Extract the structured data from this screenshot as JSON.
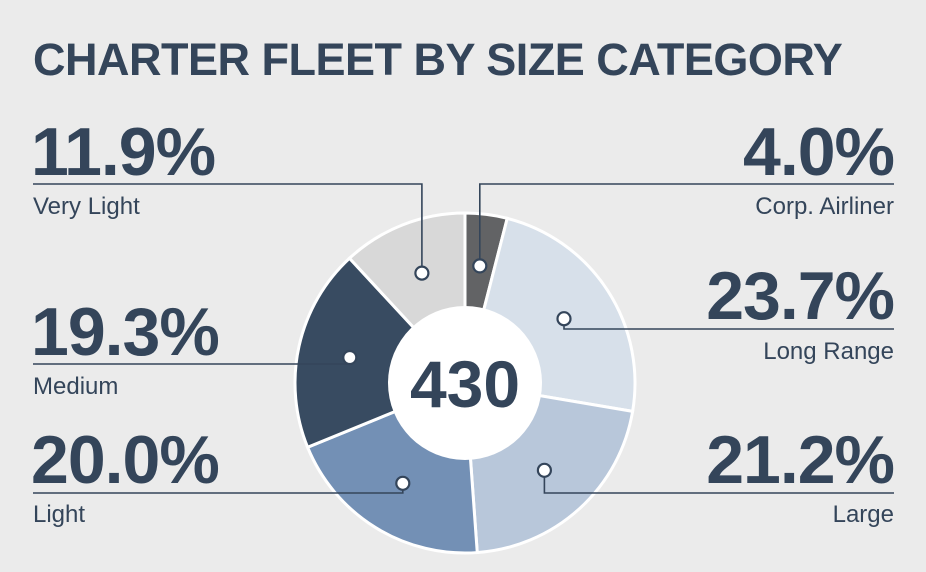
{
  "chart_data": {
    "type": "pie",
    "title": "CHARTER FLEET BY SIZE CATEGORY",
    "center_label": "430",
    "slices": [
      {
        "label": "Corp. Airliner",
        "value": 4.0,
        "value_text": "4.0%",
        "color": "#626365"
      },
      {
        "label": "Long Range",
        "value": 23.7,
        "value_text": "23.7%",
        "color": "#d7e0ea"
      },
      {
        "label": "Large",
        "value": 21.2,
        "value_text": "21.2%",
        "color": "#b8c7da"
      },
      {
        "label": "Light",
        "value": 20.0,
        "value_text": "20.0%",
        "color": "#7390b5"
      },
      {
        "label": "Medium",
        "value": 19.3,
        "value_text": "19.3%",
        "color": "#384b61"
      },
      {
        "label": "Very Light",
        "value": 11.9,
        "value_text": "11.9%",
        "color": "#d8d8d8"
      }
    ]
  },
  "colors": {
    "background": "#ebebeb",
    "text": "#34455a",
    "center": "#ffffff"
  }
}
